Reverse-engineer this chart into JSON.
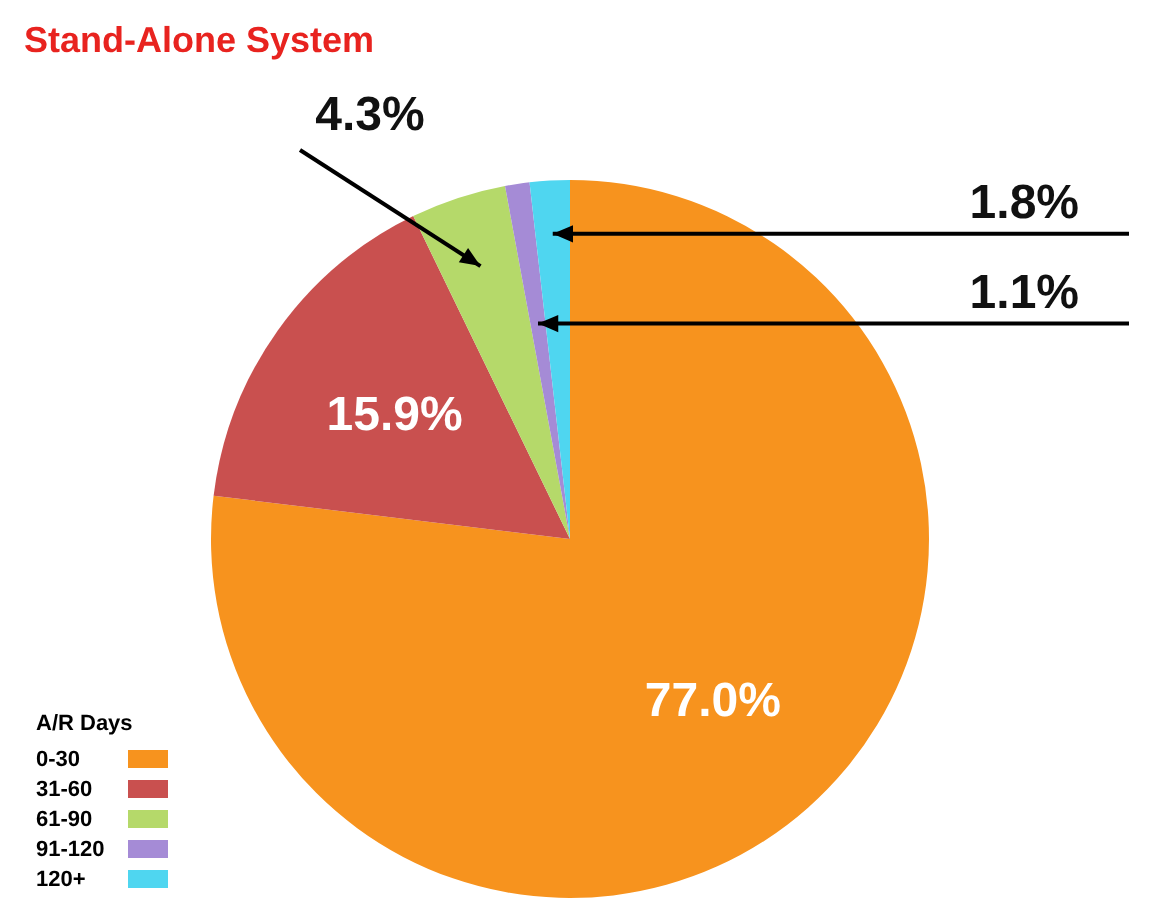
{
  "chart_data": {
    "type": "pie",
    "title": "Stand-Alone System",
    "legend_title": "A/R Days",
    "categories": [
      "0-30",
      "31-60",
      "61-90",
      "91-120",
      "120+"
    ],
    "values": [
      77.0,
      15.9,
      4.3,
      1.1,
      1.8
    ],
    "colors": [
      "#f7931e",
      "#c9504f",
      "#b5d96a",
      "#a58bd6",
      "#4fd6f0"
    ],
    "value_labels": [
      "77.0%",
      "15.9%",
      "4.3%",
      "1.1%",
      "1.8%"
    ],
    "legend": "bottom left"
  }
}
